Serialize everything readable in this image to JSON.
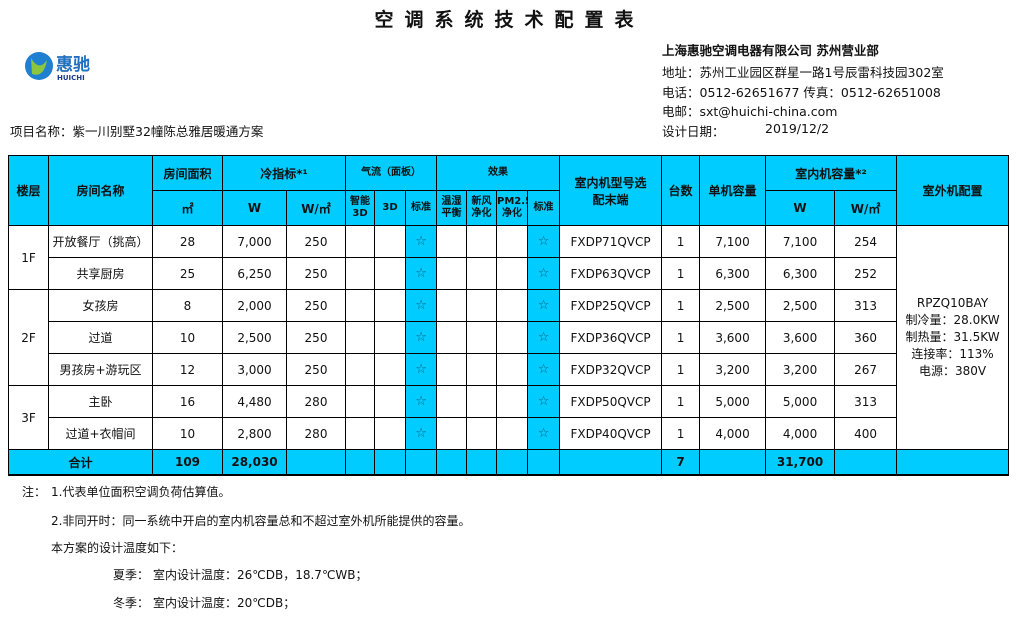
{
  "title": "空调系统技术配置表",
  "logo": {
    "text": "惠驰",
    "sub": "HUICHI"
  },
  "company": {
    "name": "上海惠驰空调电器有限公司 苏州营业部",
    "address": "地址：苏州工业园区群星一路1号辰雷科技园302室",
    "phone": "电话：0512-62651677  传真：0512-62651008",
    "email": "电邮：sxt@huichi-china.com",
    "date_label": "设计日期：",
    "date": "2019/12/2"
  },
  "project": "项目名称：紫一川别墅32幢陈总雅居暖通方案",
  "headers": {
    "floor": "楼层",
    "room": "房间名称",
    "area": "房间面积",
    "area_unit": "㎡",
    "cold": "冷指标*¹",
    "w": "W",
    "wm2": "W/㎡",
    "airflow": "气流（面板）",
    "smart3d": "智能3D",
    "d3": "3D",
    "std": "标准",
    "effect": "效果",
    "humid": "温湿平衡",
    "fresh": "新风净化",
    "pm25": "PM2.5净化",
    "std2": "标准",
    "model": "室内机型号选配末端",
    "count": "台数",
    "unitcap": "单机容量",
    "indoorcap": "室内机容量*²",
    "w2": "W",
    "wm2b": "W/㎡",
    "outdoor": "室外机配置"
  },
  "rows": [
    {
      "floor": "1F",
      "room": "开放餐厅（挑高）",
      "area": "28",
      "w": "7,000",
      "wm2": "250",
      "std": "☆",
      "std2": "☆",
      "model": "FXDP71QVCP",
      "count": "1",
      "unit": "7,100",
      "cap": "7,100",
      "capm2": "254"
    },
    {
      "floor": "",
      "room": "共享厨房",
      "area": "25",
      "w": "6,250",
      "wm2": "250",
      "std": "☆",
      "std2": "☆",
      "model": "FXDP63QVCP",
      "count": "1",
      "unit": "6,300",
      "cap": "6,300",
      "capm2": "252"
    },
    {
      "floor": "2F",
      "room": "女孩房",
      "area": "8",
      "w": "2,000",
      "wm2": "250",
      "std": "☆",
      "std2": "☆",
      "model": "FXDP25QVCP",
      "count": "1",
      "unit": "2,500",
      "cap": "2,500",
      "capm2": "313"
    },
    {
      "floor": "",
      "room": "过道",
      "area": "10",
      "w": "2,500",
      "wm2": "250",
      "std": "☆",
      "std2": "☆",
      "model": "FXDP36QVCP",
      "count": "1",
      "unit": "3,600",
      "cap": "3,600",
      "capm2": "360"
    },
    {
      "floor": "",
      "room": "男孩房+游玩区",
      "area": "12",
      "w": "3,000",
      "wm2": "250",
      "std": "☆",
      "std2": "☆",
      "model": "FXDP32QVCP",
      "count": "1",
      "unit": "3,200",
      "cap": "3,200",
      "capm2": "267"
    },
    {
      "floor": "3F",
      "room": "主卧",
      "area": "16",
      "w": "4,480",
      "wm2": "280",
      "std": "☆",
      "std2": "☆",
      "model": "FXDP50QVCP",
      "count": "1",
      "unit": "5,000",
      "cap": "5,000",
      "capm2": "313"
    },
    {
      "floor": "",
      "room": "过道+衣帽间",
      "area": "10",
      "w": "2,800",
      "wm2": "280",
      "std": "☆",
      "std2": "☆",
      "model": "FXDP40QVCP",
      "count": "1",
      "unit": "4,000",
      "cap": "4,000",
      "capm2": "400"
    }
  ],
  "floor_spans": [
    2,
    0,
    3,
    0,
    0,
    2,
    0
  ],
  "outdoor": [
    "RPZQ10BAY",
    "制冷量：28.0KW",
    "制热量：31.5KW",
    "连接率：113%",
    "电源：380V"
  ],
  "total": {
    "label": "合计",
    "area": "109",
    "w": "28,030",
    "count": "7",
    "cap": "31,700"
  },
  "notes": {
    "prefix": "注：",
    "n1": "1.代表单位面积空调负荷估算值。",
    "n2": "2.非同开时：同一系统中开启的室内机容量总和不超过室外机所能提供的容量。",
    "n3": "本方案的设计温度如下：",
    "summer_label": "夏季：",
    "summer": "室内设计温度：26℃DB，18.7℃WB；",
    "winter_label": "冬季：",
    "winter": "室内设计温度：20℃DB；"
  },
  "colors": {
    "header_bg": "#00CCFF"
  }
}
